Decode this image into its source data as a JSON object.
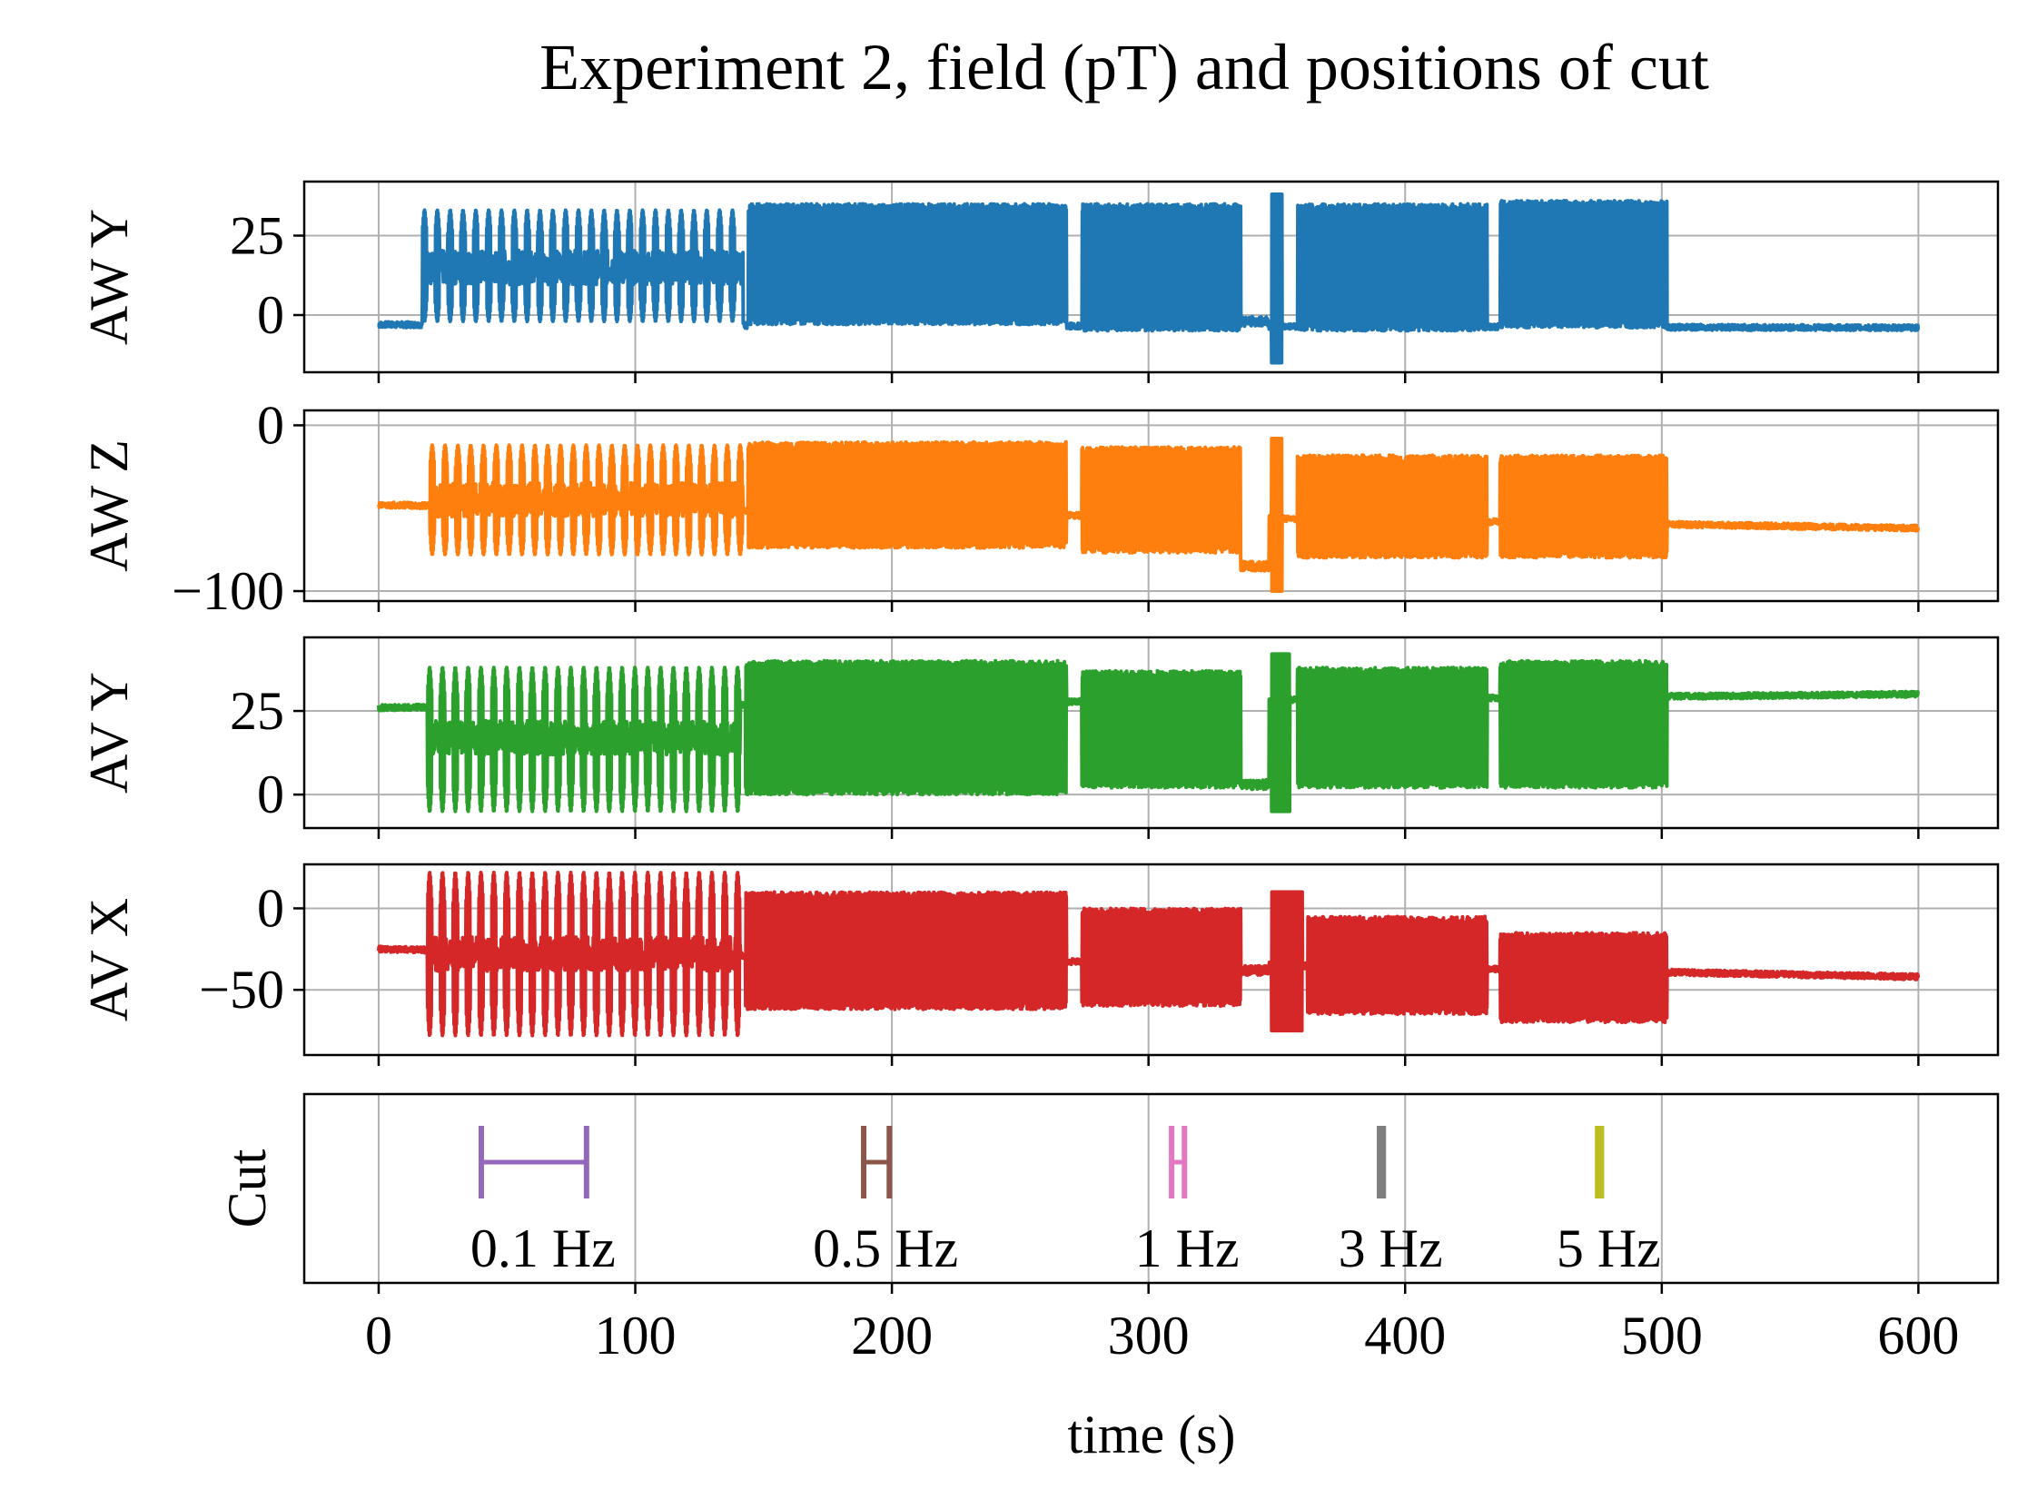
{
  "chart_data": {
    "type": "line",
    "title": "Experiment 2, field (pT) and positions of cut",
    "xlabel": "time (s)",
    "xlim": [
      -29,
      631
    ],
    "xticks": [
      0,
      100,
      200,
      300,
      400,
      500,
      600
    ],
    "grid": true,
    "panels": [
      {
        "ylabel": "AW Y",
        "color": "#1f77b4",
        "ylim": [
          -18,
          42
        ],
        "yticks": [
          0,
          25
        ],
        "baseline_start": -3,
        "baseline_end": -4,
        "segments": [
          {
            "t0": 17,
            "t1": 142,
            "kind": "bursts",
            "period": 5,
            "lo": -2,
            "hi": 33,
            "center": 15
          },
          {
            "t0": 144,
            "t1": 268,
            "kind": "band",
            "lo": -3,
            "hi": 35,
            "center": 16
          },
          {
            "t0": 274,
            "t1": 336,
            "kind": "band",
            "lo": -5,
            "hi": 35,
            "center": 15
          },
          {
            "t0": 336,
            "t1": 347,
            "kind": "dip",
            "level": -2
          },
          {
            "t0": 348,
            "t1": 352,
            "kind": "spike",
            "lo": -15,
            "hi": 38
          },
          {
            "t0": 358,
            "t1": 432,
            "kind": "band",
            "lo": -5,
            "hi": 35,
            "center": 16
          },
          {
            "t0": 437,
            "t1": 502,
            "kind": "band",
            "lo": -4,
            "hi": 36,
            "center": 16
          }
        ]
      },
      {
        "ylabel": "AW Z",
        "color": "#ff7f0e",
        "ylim": [
          -106,
          9
        ],
        "yticks": [
          -100,
          0
        ],
        "baseline_start": -48,
        "baseline_end": -62,
        "segments": [
          {
            "t0": 20,
            "t1": 142,
            "kind": "bursts",
            "period": 5,
            "lo": -78,
            "hi": -12,
            "center": -45
          },
          {
            "t0": 144,
            "t1": 268,
            "kind": "band",
            "lo": -74,
            "hi": -10,
            "center": -44
          },
          {
            "t0": 274,
            "t1": 336,
            "kind": "band",
            "lo": -77,
            "hi": -13,
            "center": -45
          },
          {
            "t0": 336,
            "t1": 347,
            "kind": "dip",
            "level": -85
          },
          {
            "t0": 348,
            "t1": 352,
            "kind": "spike",
            "lo": -100,
            "hi": -8
          },
          {
            "t0": 358,
            "t1": 432,
            "kind": "band",
            "lo": -80,
            "hi": -18,
            "center": -50
          },
          {
            "t0": 437,
            "t1": 502,
            "kind": "band",
            "lo": -80,
            "hi": -18,
            "center": -50
          }
        ]
      },
      {
        "ylabel": "AV Y",
        "color": "#2ca02c",
        "ylim": [
          -10,
          47
        ],
        "yticks": [
          0,
          25
        ],
        "baseline_start": 26,
        "baseline_end": 30,
        "segments": [
          {
            "t0": 19,
            "t1": 141,
            "kind": "bursts",
            "period": 5,
            "lo": -5,
            "hi": 38,
            "center": 17
          },
          {
            "t0": 143,
            "t1": 268,
            "kind": "band",
            "lo": 0,
            "hi": 40,
            "center": 20
          },
          {
            "t0": 274,
            "t1": 336,
            "kind": "band",
            "lo": 2,
            "hi": 37,
            "center": 20
          },
          {
            "t0": 336,
            "t1": 347,
            "kind": "dip",
            "level": 3
          },
          {
            "t0": 348,
            "t1": 355,
            "kind": "spike",
            "lo": -5,
            "hi": 42
          },
          {
            "t0": 358,
            "t1": 432,
            "kind": "band",
            "lo": 2,
            "hi": 38,
            "center": 20
          },
          {
            "t0": 437,
            "t1": 502,
            "kind": "band",
            "lo": 2,
            "hi": 40,
            "center": 21
          }
        ]
      },
      {
        "ylabel": "AV X",
        "color": "#d62728",
        "ylim": [
          -90,
          27
        ],
        "yticks": [
          -50,
          0
        ],
        "baseline_start": -25,
        "baseline_end": -42,
        "segments": [
          {
            "t0": 19,
            "t1": 141,
            "kind": "bursts",
            "period": 5,
            "lo": -78,
            "hi": 22,
            "center": -28
          },
          {
            "t0": 143,
            "t1": 268,
            "kind": "band",
            "lo": -62,
            "hi": 10,
            "center": -25
          },
          {
            "t0": 274,
            "t1": 336,
            "kind": "band",
            "lo": -60,
            "hi": 0,
            "center": -30
          },
          {
            "t0": 336,
            "t1": 347,
            "kind": "dip",
            "level": -38
          },
          {
            "t0": 348,
            "t1": 360,
            "kind": "spike",
            "lo": -75,
            "hi": 10
          },
          {
            "t0": 362,
            "t1": 432,
            "kind": "band",
            "lo": -65,
            "hi": -5,
            "center": -35
          },
          {
            "t0": 437,
            "t1": 502,
            "kind": "band",
            "lo": -70,
            "hi": -15,
            "center": -40
          }
        ]
      }
    ],
    "cut_panel": {
      "ylabel": "Cut",
      "cuts": [
        {
          "label": "0.1 Hz",
          "t0": 40,
          "t1": 81,
          "color": "#9467bd"
        },
        {
          "label": "0.5 Hz",
          "t0": 189,
          "t1": 199,
          "color": "#8c564b"
        },
        {
          "label": "1 Hz",
          "t0": 309,
          "t1": 314,
          "color": "#e377c2"
        },
        {
          "label": "3 Hz",
          "t0": 390,
          "t1": 391.5,
          "color": "#7f7f7f"
        },
        {
          "label": "5 Hz",
          "t0": 475,
          "t1": 476.5,
          "color": "#bcbd22"
        }
      ]
    }
  }
}
